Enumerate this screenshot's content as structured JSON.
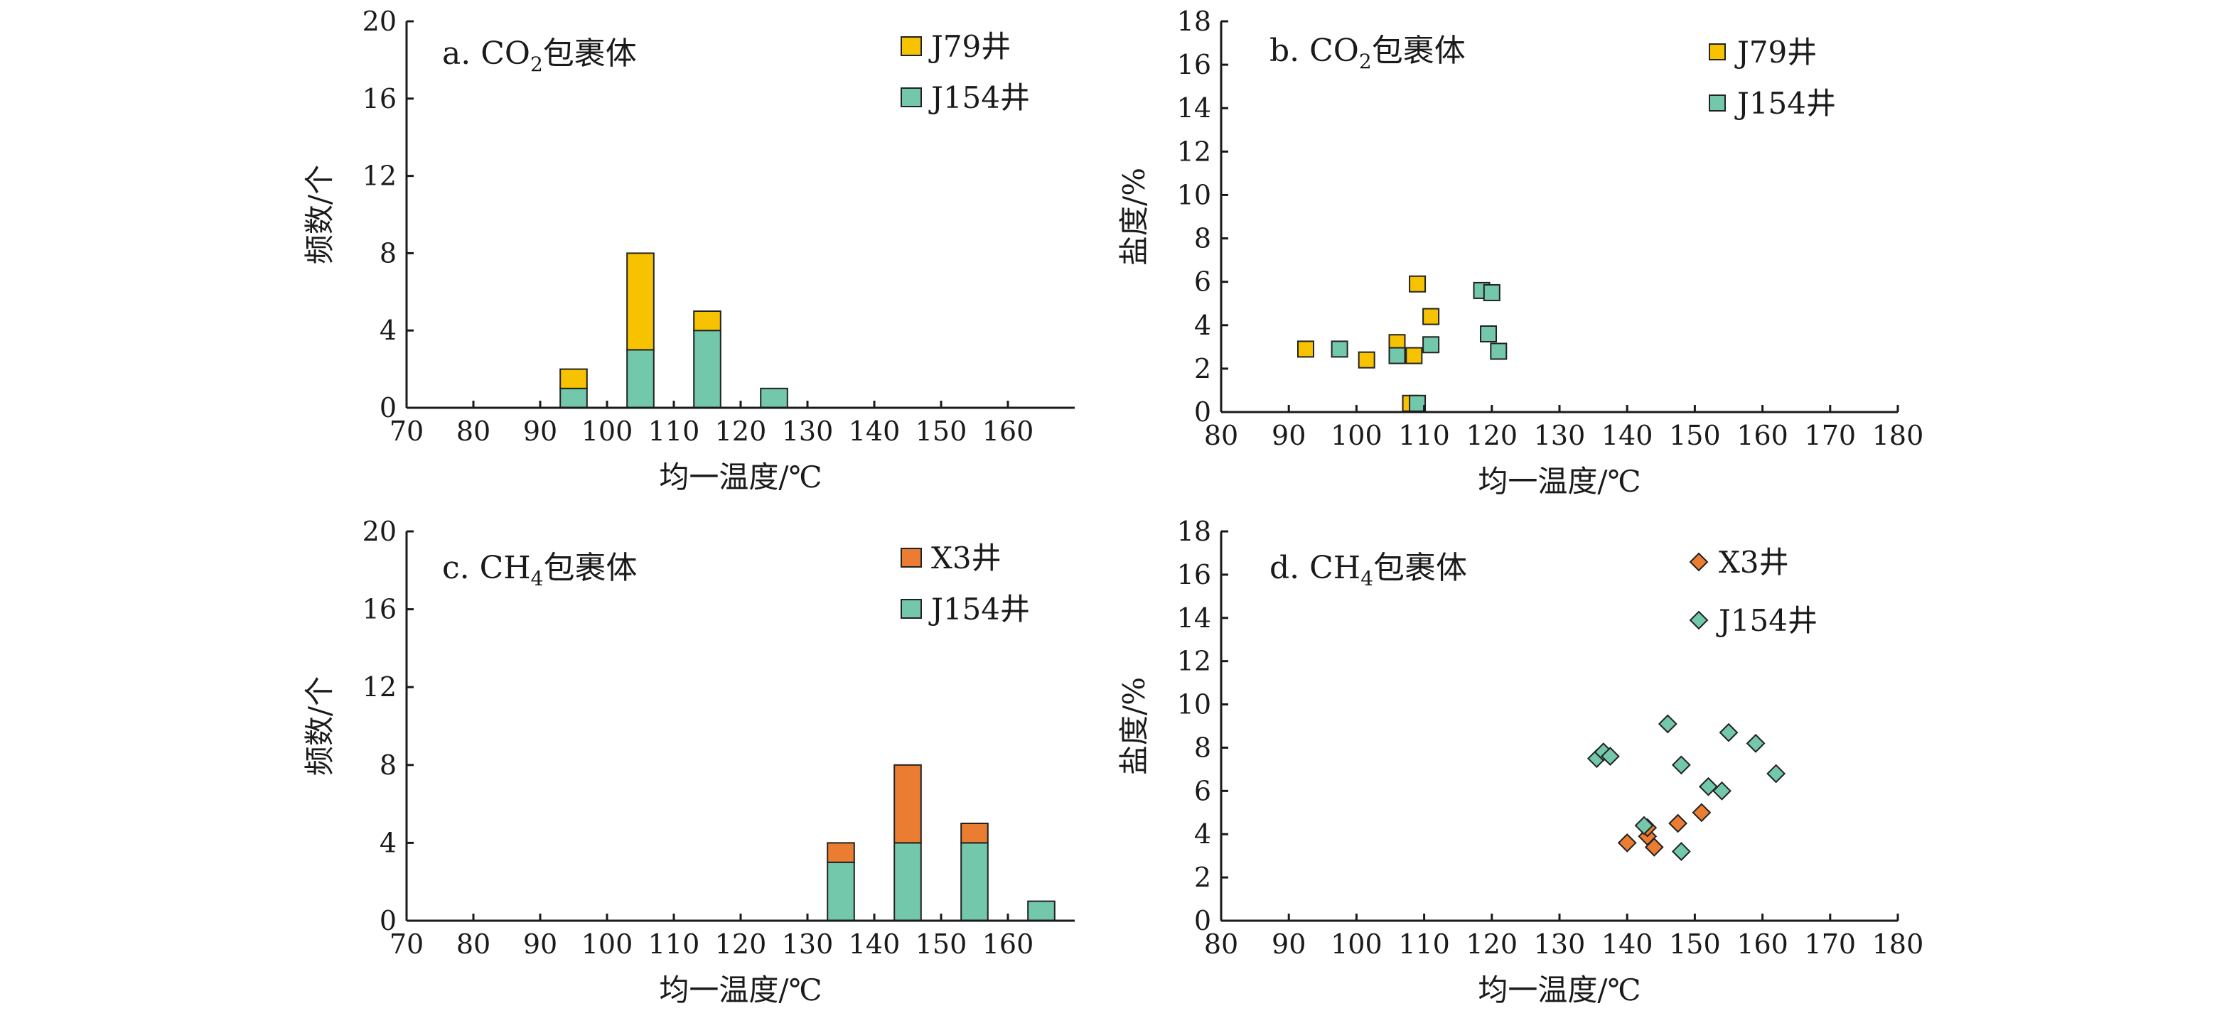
{
  "colors": {
    "j79": "#f7c300",
    "j154": "#73c7aa",
    "x3": "#eb7d32",
    "axis": "#1a1a1a",
    "edge": "#222222"
  },
  "chart_data": [
    {
      "id": "a",
      "type": "bar",
      "stacked": true,
      "title_prefix": "a. CO",
      "title_sub": "2",
      "title_suffix": "包裹体",
      "xlabel": "均一温度/℃",
      "ylabel": "频数/个",
      "xlim": [
        70,
        170
      ],
      "ylim": [
        0,
        20
      ],
      "xticks": [
        70,
        80,
        90,
        100,
        110,
        120,
        130,
        140,
        150,
        160
      ],
      "yticks": [
        0,
        4,
        8,
        12,
        16,
        20
      ],
      "bin_width": 10,
      "bins": [
        [
          90,
          100
        ],
        [
          100,
          110
        ],
        [
          110,
          120
        ],
        [
          120,
          130
        ]
      ],
      "series": [
        {
          "name": "J154井",
          "color_key": "j154",
          "values": [
            1,
            3,
            4,
            1
          ]
        },
        {
          "name": "J79井",
          "color_key": "j79",
          "values": [
            1,
            5,
            1,
            0
          ]
        }
      ]
    },
    {
      "id": "b",
      "type": "scatter",
      "marker": "square",
      "title_prefix": "b. CO",
      "title_sub": "2",
      "title_suffix": "包裹体",
      "xlabel": "均一温度/℃",
      "ylabel": "盐度/%",
      "xlim": [
        80,
        180
      ],
      "ylim": [
        0,
        18
      ],
      "xticks": [
        80,
        90,
        100,
        110,
        120,
        130,
        140,
        150,
        160,
        170,
        180
      ],
      "yticks": [
        0,
        2,
        4,
        6,
        8,
        10,
        12,
        14,
        16,
        18
      ],
      "series": [
        {
          "name": "J79井",
          "color_key": "j79",
          "points": [
            [
              92.5,
              2.9
            ],
            [
              101.5,
              2.4
            ],
            [
              106,
              3.2
            ],
            [
              108.5,
              2.6
            ],
            [
              109,
              5.9
            ],
            [
              111,
              4.4
            ],
            [
              108,
              0.4
            ]
          ]
        },
        {
          "name": "J154井",
          "color_key": "j154",
          "points": [
            [
              97.5,
              2.9
            ],
            [
              106,
              2.6
            ],
            [
              111,
              3.1
            ],
            [
              118.5,
              5.6
            ],
            [
              120,
              5.5
            ],
            [
              119.5,
              3.6
            ],
            [
              121,
              2.8
            ],
            [
              109,
              0.4
            ]
          ]
        }
      ]
    },
    {
      "id": "c",
      "type": "bar",
      "stacked": true,
      "title_prefix": "c. CH",
      "title_sub": "4",
      "title_suffix": "包裹体",
      "xlabel": "均一温度/℃",
      "ylabel": "频数/个",
      "xlim": [
        70,
        170
      ],
      "ylim": [
        0,
        20
      ],
      "xticks": [
        70,
        80,
        90,
        100,
        110,
        120,
        130,
        140,
        150,
        160
      ],
      "yticks": [
        0,
        4,
        8,
        12,
        16,
        20
      ],
      "bin_width": 10,
      "bins": [
        [
          130,
          140
        ],
        [
          140,
          150
        ],
        [
          150,
          160
        ],
        [
          160,
          170
        ]
      ],
      "series": [
        {
          "name": "J154井",
          "color_key": "j154",
          "values": [
            3,
            4,
            4,
            1
          ]
        },
        {
          "name": "X3井",
          "color_key": "x3",
          "values": [
            1,
            4,
            1,
            0
          ]
        }
      ]
    },
    {
      "id": "d",
      "type": "scatter",
      "marker": "diamond",
      "title_prefix": "d. CH",
      "title_sub": "4",
      "title_suffix": "包裹体",
      "xlabel": "均一温度/℃",
      "ylabel": "盐度/%",
      "xlim": [
        80,
        180
      ],
      "ylim": [
        0,
        18
      ],
      "xticks": [
        80,
        90,
        100,
        110,
        120,
        130,
        140,
        150,
        160,
        170,
        180
      ],
      "yticks": [
        0,
        2,
        4,
        6,
        8,
        10,
        12,
        14,
        16,
        18
      ],
      "series": [
        {
          "name": "X3井",
          "color_key": "x3",
          "points": [
            [
              140,
              3.6
            ],
            [
              143,
              3.9
            ],
            [
              144,
              3.4
            ],
            [
              147.5,
              4.5
            ],
            [
              151,
              5.0
            ],
            [
              143,
              4.3
            ]
          ]
        },
        {
          "name": "J154井",
          "color_key": "j154",
          "points": [
            [
              135.5,
              7.5
            ],
            [
              136.5,
              7.8
            ],
            [
              137.5,
              7.6
            ],
            [
              146,
              9.1
            ],
            [
              148,
              7.2
            ],
            [
              155,
              8.7
            ],
            [
              159,
              8.2
            ],
            [
              162,
              6.8
            ],
            [
              152,
              6.2
            ],
            [
              154,
              6.0
            ],
            [
              142.5,
              4.4
            ],
            [
              148,
              3.2
            ]
          ]
        }
      ]
    }
  ]
}
